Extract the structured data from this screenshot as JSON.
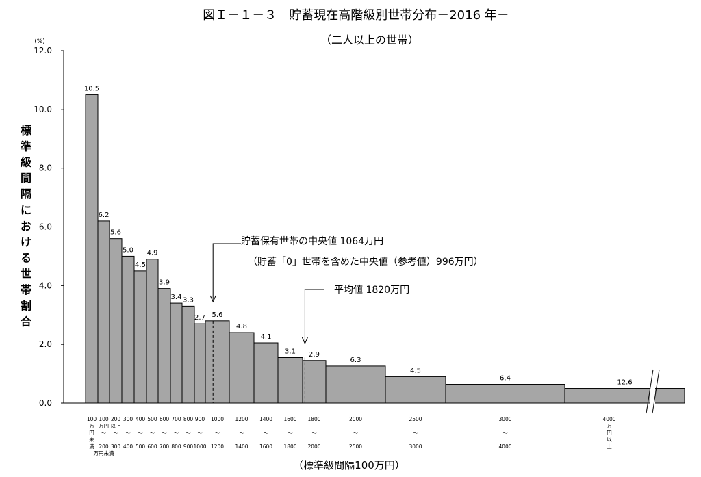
{
  "chart_data": {
    "type": "bar",
    "title": "図Ｉ－１－３　貯蓄現在高階級別世帯分布－2016 年－",
    "subtitle": "（二人以上の世帯）",
    "ylabel": "標準級間隔における世帯割合",
    "yunit": "(%)",
    "xlabel": "（標準級間隔100万円）",
    "ylim": [
      0,
      12
    ],
    "yticks": [
      "0.0",
      "2.0",
      "4.0",
      "6.0",
      "8.0",
      "10.0",
      "12.0"
    ],
    "grid": false,
    "categories": [
      "100万円未満",
      "100～200",
      "200～300",
      "300～400",
      "400～500",
      "500～600",
      "600～700",
      "700～800",
      "800～900",
      "900～1000",
      "1000～1200",
      "1200～1400",
      "1400～1600",
      "1600～1800",
      "1800～2000",
      "2000～2500",
      "2500～3000",
      "3000～4000",
      "4000万円以上"
    ],
    "bins": [
      [
        0,
        100
      ],
      [
        100,
        200
      ],
      [
        200,
        300
      ],
      [
        300,
        400
      ],
      [
        400,
        500
      ],
      [
        500,
        600
      ],
      [
        600,
        700
      ],
      [
        700,
        800
      ],
      [
        800,
        900
      ],
      [
        900,
        1000
      ],
      [
        1000,
        1200
      ],
      [
        1200,
        1400
      ],
      [
        1400,
        1600
      ],
      [
        1600,
        1800
      ],
      [
        1800,
        2000
      ],
      [
        2000,
        2500
      ],
      [
        2500,
        3000
      ],
      [
        3000,
        4000
      ],
      [
        4000,
        null
      ]
    ],
    "heights": [
      10.5,
      6.2,
      5.6,
      5.0,
      4.5,
      4.9,
      3.9,
      3.4,
      3.3,
      2.7,
      2.8,
      2.4,
      2.05,
      1.55,
      1.45,
      1.26,
      0.9,
      0.64,
      0.5
    ],
    "values": [
      "10.5",
      "6.2",
      "5.6",
      "5.0",
      "4.5",
      "4.9",
      "3.9",
      "3.4",
      "3.3",
      "2.7",
      "5.6",
      "4.8",
      "4.1",
      "3.1",
      "2.9",
      "6.3",
      "4.5",
      "6.4",
      "12.6"
    ],
    "cat_labels_top": [
      "100",
      "100",
      "200",
      "300",
      "400",
      "500",
      "600",
      "700",
      "800",
      "900",
      "1000",
      "1200",
      "1400",
      "1600",
      "1800",
      "2000",
      "2500",
      "3000",
      "4000"
    ],
    "cat_labels_mid1": [
      "万",
      "万円",
      "以上",
      "",
      "",
      "",
      "",
      "",
      "",
      "",
      "",
      "",
      "",
      "",
      "",
      "",
      "",
      "",
      "万"
    ],
    "cat_labels_mid2": [
      "円",
      "～",
      "～",
      "～",
      "～",
      "～",
      "～",
      "～",
      "～",
      "～",
      "～",
      "～",
      "～",
      "～",
      "～",
      "～",
      "～",
      "～",
      "円"
    ],
    "cat_labels_mid3": [
      "未",
      "",
      "",
      "",
      "",
      "",
      "",
      "",
      "",
      "",
      "",
      "",
      "",
      "",
      "",
      "",
      "",
      "",
      "以"
    ],
    "cat_labels_bottom": [
      "満",
      "200",
      "300",
      "400",
      "500",
      "600",
      "700",
      "800",
      "900",
      "1000",
      "1200",
      "1400",
      "1600",
      "1800",
      "2000",
      "2500",
      "3000",
      "4000",
      "上"
    ],
    "cat_labels_bottom2": [
      "",
      "万円未満",
      "",
      "",
      "",
      "",
      "",
      "",
      "",
      "",
      "",
      "",
      "",
      "",
      "",
      "",
      "",
      "",
      ""
    ],
    "annotations": {
      "median": {
        "value": 1064,
        "line1": "貯蓄保有世帯の中央値 1064万円",
        "line2": "（貯蓄「0」世帯を含めた中央値（参考値）996万円）"
      },
      "mean": {
        "value": 1820,
        "line1": "平均値 1820万円"
      }
    },
    "colors": {
      "bar": "#a6a6a6",
      "edge": "#000000",
      "text": "#000000"
    }
  }
}
